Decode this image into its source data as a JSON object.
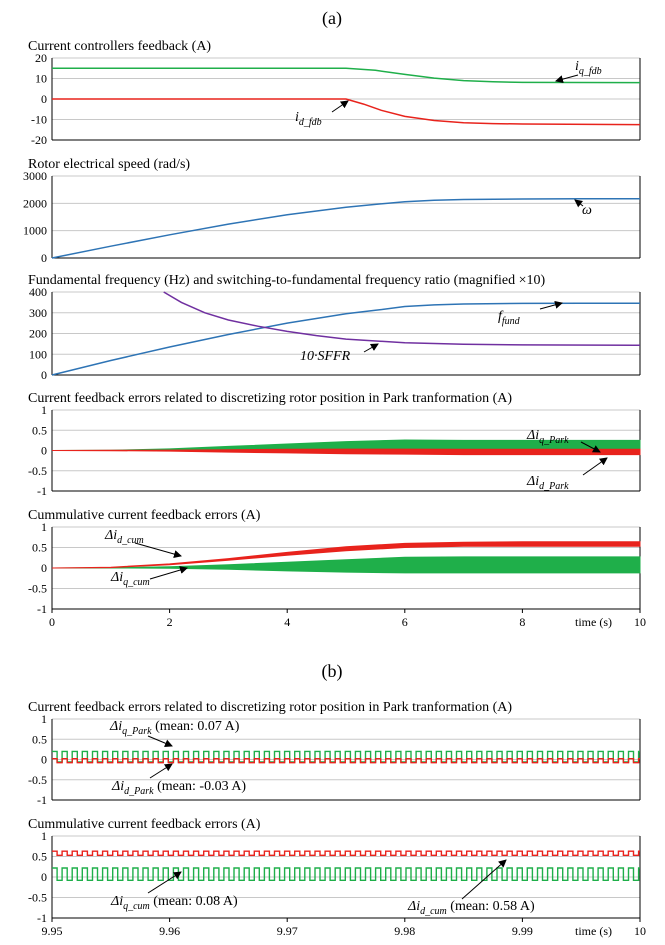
{
  "figure": {
    "label_a": "(a)",
    "label_b": "(b)"
  },
  "colors": {
    "green": "#1faf4a",
    "red": "#e8231c",
    "blue": "#2e74b5",
    "purple": "#7030a0",
    "grid": "#c8c8c8"
  },
  "chart_data": [
    {
      "id": "a1",
      "type": "line",
      "title": "Current controllers feedback (A)",
      "xlim": [
        0,
        10
      ],
      "ylim": [
        -20,
        20
      ],
      "yticks": [
        "20",
        "10",
        "0",
        "-10",
        "-20"
      ],
      "series": [
        {
          "name": "iq_fdb",
          "color": "green",
          "x": [
            0,
            5,
            5.5,
            6,
            6.5,
            7,
            7.5,
            8,
            10
          ],
          "values": [
            15,
            15,
            14,
            12,
            10.2,
            9,
            8.4,
            8.1,
            8
          ]
        },
        {
          "name": "id_fdb",
          "color": "red",
          "x": [
            0,
            4.8,
            5,
            5.3,
            5.6,
            6,
            6.5,
            7,
            7.5,
            8,
            10
          ],
          "values": [
            0,
            0,
            0,
            -2.5,
            -5.5,
            -8.5,
            -10.5,
            -11.6,
            -12,
            -12.2,
            -12.5
          ]
        }
      ],
      "annotations": [
        {
          "main": "i",
          "sub": "q_fdb"
        },
        {
          "main": "i",
          "sub": "d_fdb"
        }
      ]
    },
    {
      "id": "a2",
      "type": "line",
      "title": "Rotor electrical speed (rad/s)",
      "xlim": [
        0,
        10
      ],
      "ylim": [
        0,
        3000
      ],
      "yticks": [
        "3000",
        "2000",
        "1000",
        "0"
      ],
      "series": [
        {
          "name": "ω",
          "color": "blue",
          "x": [
            0,
            1,
            2,
            3,
            4,
            5,
            5.5,
            6,
            6.5,
            7,
            8,
            9,
            10
          ],
          "values": [
            0,
            430,
            850,
            1240,
            1580,
            1860,
            1960,
            2060,
            2110,
            2140,
            2160,
            2170,
            2170
          ]
        }
      ],
      "annotations": [
        {
          "main": "ω",
          "sub": ""
        }
      ]
    },
    {
      "id": "a3",
      "type": "line",
      "title": "Fundamental frequency (Hz) and switching-to-fundamental frequency ratio (magnified ×10)",
      "xlim": [
        0,
        10
      ],
      "ylim": [
        0,
        400
      ],
      "yticks": [
        "400",
        "300",
        "200",
        "100",
        "0"
      ],
      "series": [
        {
          "name": "f_fund",
          "color": "blue",
          "x": [
            0,
            1,
            2,
            3,
            4,
            5,
            5.5,
            6,
            6.5,
            7,
            8,
            9,
            10
          ],
          "values": [
            0,
            70,
            135,
            195,
            250,
            295,
            312,
            330,
            338,
            342,
            345,
            346,
            346
          ]
        },
        {
          "name": "10·SFFR",
          "color": "purple",
          "x": [
            1.9,
            2.2,
            2.6,
            3,
            3.5,
            4,
            4.5,
            5,
            6,
            7,
            8,
            10
          ],
          "values": [
            400,
            350,
            300,
            265,
            235,
            210,
            190,
            173,
            155,
            148,
            145,
            143
          ]
        }
      ],
      "annotations": [
        {
          "main": "f",
          "sub": "fund"
        },
        {
          "main": "10·",
          "italic": "SFFR"
        }
      ]
    },
    {
      "id": "a4",
      "type": "area",
      "title": "Current feedback errors related to discretizing rotor position in Park tranformation (A)",
      "xlim": [
        0,
        10
      ],
      "ylim": [
        -1,
        1
      ],
      "yticks": [
        "1",
        "0.5",
        "0",
        "-0.5",
        "-1"
      ],
      "series": [
        {
          "name": "Δiq_Park",
          "color": "green",
          "x": [
            0,
            1,
            2,
            3,
            4,
            5,
            6,
            7,
            8,
            10
          ],
          "upper": [
            0,
            0.005,
            0.04,
            0.1,
            0.16,
            0.22,
            0.26,
            0.25,
            0.25,
            0.25
          ],
          "lower": [
            0,
            0,
            0,
            -0.02,
            -0.03,
            -0.04,
            -0.05,
            -0.05,
            -0.05,
            -0.05
          ]
        },
        {
          "name": "Δid_Park",
          "color": "red",
          "x": [
            0,
            1,
            2,
            3,
            4,
            5,
            6,
            7,
            8,
            10
          ],
          "upper": [
            0,
            0.005,
            0.01,
            0.02,
            0.03,
            0.035,
            0.035,
            0.03,
            0.03,
            0.03
          ],
          "lower": [
            0,
            -0.005,
            -0.015,
            -0.04,
            -0.06,
            -0.08,
            -0.09,
            -0.1,
            -0.1,
            -0.1
          ]
        }
      ],
      "annotations": [
        {
          "main": "Δi",
          "sub": "q_Park"
        },
        {
          "main": "Δi",
          "sub": "d_Park"
        }
      ]
    },
    {
      "id": "a5",
      "type": "area",
      "title": "Cummulative current feedback errors (A)",
      "xlim": [
        0,
        10
      ],
      "ylim": [
        -1,
        1
      ],
      "yticks": [
        "1",
        "0.5",
        "0",
        "-0.5",
        "-1"
      ],
      "xticks": [
        "0",
        "2",
        "4",
        "6",
        "8",
        "10"
      ],
      "xlabel": "time (s)",
      "series": [
        {
          "name": "Δiq_cum",
          "color": "green",
          "x": [
            0,
            1,
            2,
            3,
            4,
            5,
            6,
            7,
            8,
            10
          ],
          "upper": [
            0,
            0.005,
            0.03,
            0.08,
            0.14,
            0.2,
            0.26,
            0.27,
            0.27,
            0.27
          ],
          "lower": [
            0,
            0,
            -0.005,
            -0.03,
            -0.07,
            -0.1,
            -0.12,
            -0.12,
            -0.12,
            -0.12
          ]
        },
        {
          "name": "Δid_cum",
          "color": "red",
          "x": [
            0,
            1,
            2,
            3,
            4,
            5,
            6,
            7,
            8,
            10
          ],
          "upper": [
            0,
            0.02,
            0.1,
            0.23,
            0.38,
            0.52,
            0.6,
            0.63,
            0.64,
            0.64
          ],
          "lower": [
            0,
            0.01,
            0.08,
            0.19,
            0.31,
            0.42,
            0.5,
            0.53,
            0.53,
            0.53
          ]
        }
      ],
      "annotations": [
        {
          "main": "Δi",
          "sub": "d_cum"
        },
        {
          "main": "Δi",
          "sub": "q_cum"
        }
      ]
    },
    {
      "id": "b1",
      "type": "line",
      "title": "Current feedback errors related to discretizing rotor position in Park tranformation (A)",
      "xlim": [
        9.95,
        10
      ],
      "ylim": [
        -1,
        1
      ],
      "yticks": [
        "1",
        "0.5",
        "0",
        "-0.5",
        "-1"
      ],
      "series": [
        {
          "name": "Δiq_Park",
          "color": "green",
          "kind": "square",
          "period": 0.00086,
          "high": 0.2,
          "low": -0.06,
          "mean": 0.07
        },
        {
          "name": "Δid_Park",
          "color": "red",
          "kind": "square",
          "period": 0.00086,
          "high": 0.02,
          "low": -0.08,
          "mean": -0.03
        }
      ],
      "annotations": [
        {
          "main": "Δi",
          "sub": "q_Park",
          "tail": " (mean: 0.07 A)"
        },
        {
          "main": "Δi",
          "sub": "d_Park",
          "tail": " (mean: -0.03 A)"
        }
      ]
    },
    {
      "id": "b2",
      "type": "line",
      "title": "Cummulative current feedback errors (A)",
      "xlim": [
        9.95,
        10
      ],
      "ylim": [
        -1,
        1
      ],
      "yticks": [
        "1",
        "0.5",
        "0",
        "-0.5",
        "-1"
      ],
      "xticks": [
        "9.95",
        "9.96",
        "9.97",
        "9.98",
        "9.99",
        "10"
      ],
      "xlabel": "time (s)",
      "series": [
        {
          "name": "Δid_cum",
          "color": "red",
          "kind": "square",
          "period": 0.00086,
          "high": 0.63,
          "low": 0.53,
          "mean": 0.58
        },
        {
          "name": "Δiq_cum",
          "color": "green",
          "kind": "square",
          "period": 0.00086,
          "high": 0.22,
          "low": -0.08,
          "mean": 0.08
        }
      ],
      "annotations": [
        {
          "main": "Δi",
          "sub": "q_cum",
          "tail": " (mean: 0.08 A)"
        },
        {
          "main": "Δi",
          "sub": "d_cum",
          "tail": " (mean: 0.58 A)"
        }
      ]
    }
  ]
}
